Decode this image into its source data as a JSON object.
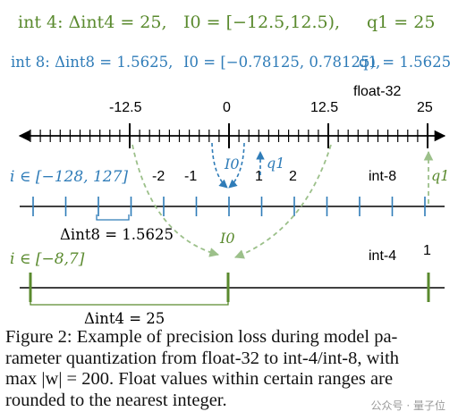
{
  "header": {
    "int4_formula": "int 4: Δint4 = 25,",
    "int4_range": "I0 = [−12.5,12.5),",
    "int4_q1": "q1 = 25",
    "int8_formula": "int 8: Δint8 = 1.5625,",
    "int8_range": "I0 = [−0.78125, 0.78125),",
    "int8_q1": "q1 = 1.5625"
  },
  "diagram": {
    "float32": {
      "label": "float-32",
      "tick_labels": [
        "-12.5",
        "0",
        "12.5",
        "25"
      ]
    },
    "int8": {
      "label": "int-8",
      "domain": "i ∈ [−128, 127]",
      "tick_labels": [
        "-2",
        "-1",
        "1",
        "2"
      ],
      "delta_label": "Δint8 = 1.5625",
      "I0_label": "I0",
      "q1_label": "q1"
    },
    "int4": {
      "label": "int-4",
      "domain": "i ∈ [−8,7]",
      "tick_label": "1",
      "delta_label": "Δint4 = 25",
      "I0_label": "I0",
      "q1_label": "q1"
    },
    "colors": {
      "green": "#5a8a2e",
      "blue": "#2f7cb8",
      "light_green": "#9cc08a",
      "black": "#000000"
    }
  },
  "caption": {
    "line1": "Figure 2: Example of precision loss during model pa-",
    "line2": "rameter quantization from float-32 to int-4/int-8, with",
    "line3": "max |w| = 200. Float values within certain ranges are",
    "line4": "rounded to the nearest integer."
  },
  "watermark": "公众号 · 量子位"
}
